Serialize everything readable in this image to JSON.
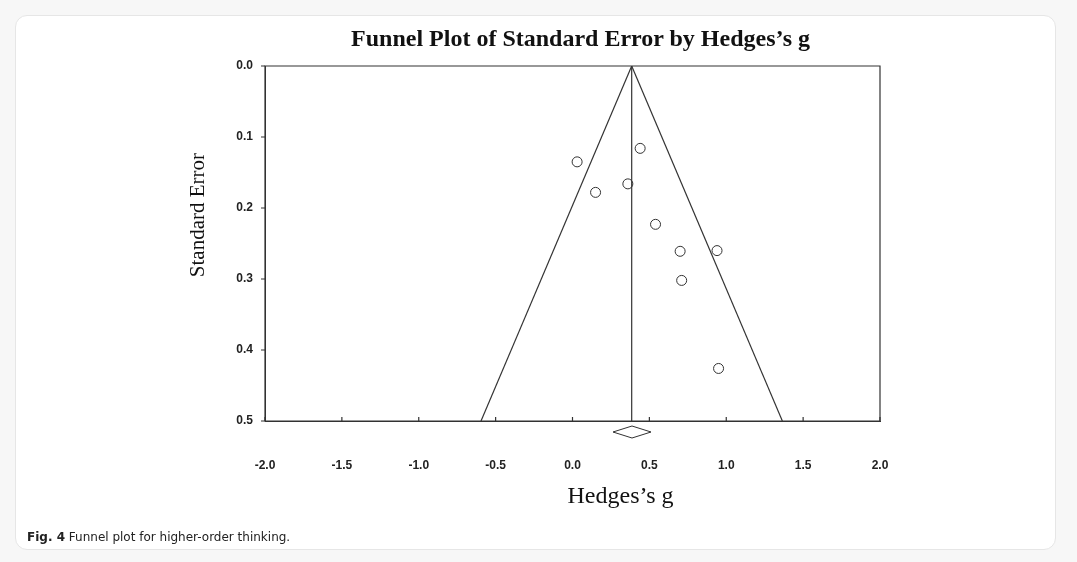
{
  "chart_data": {
    "type": "scatter",
    "title": "Funnel Plot of Standard Error by Hedges’s g",
    "xlabel": "Hedges’s g",
    "ylabel": "Standard Error",
    "annotations": [
      "Fig. 4",
      "Funnel plot for higher-order thinking."
    ],
    "series": [
      {
        "type": "scatter",
        "color": "#333333",
        "marker": "circle",
        "x": [
          0.03,
          0.44,
          0.15,
          0.36,
          0.54,
          0.7,
          0.94,
          0.71,
          0.95
        ],
        "values": [
          0.135,
          0.116,
          0.178,
          0.166,
          0.223,
          0.261,
          0.26,
          0.302,
          0.426
        ]
      },
      {
        "type": "line",
        "color": "#333333",
        "x": [
          0.385,
          -0.595
        ],
        "values": [
          0,
          0.5
        ]
      },
      {
        "type": "line",
        "color": "#333333",
        "x": [
          0.385,
          1.365
        ],
        "values": [
          0,
          0.5
        ]
      }
    ],
    "xlim": [
      -2,
      2
    ],
    "ylim": [
      0.5,
      0
    ],
    "xticks": [
      {
        "value": -2,
        "label": "-2.0"
      },
      {
        "value": -1.5,
        "label": "-1.5"
      },
      {
        "value": -1,
        "label": "-1.0"
      },
      {
        "value": -0.5,
        "label": "-0.5"
      },
      {
        "value": 0,
        "label": "0.0"
      },
      {
        "value": 0.5,
        "label": "0.5"
      },
      {
        "value": 1,
        "label": "1.0"
      },
      {
        "value": 1.5,
        "label": "1.5"
      },
      {
        "value": 2,
        "label": "2.0"
      }
    ],
    "yticks": [
      {
        "value": 0,
        "label": "0.0"
      },
      0.1,
      0.2,
      0.3,
      0.4,
      0.5
    ],
    "ref_lines": [
      {
        "axis": "x",
        "value": 0.385,
        "color": "#333333"
      }
    ],
    "grid": false,
    "legend": false
  }
}
